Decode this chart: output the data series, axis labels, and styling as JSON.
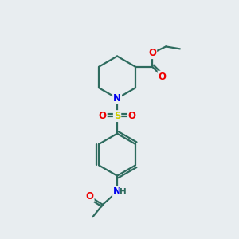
{
  "bg_color": "#e8edf0",
  "bond_color": "#2d6b5e",
  "bond_width": 1.6,
  "atom_colors": {
    "N": "#0000ee",
    "O": "#ee0000",
    "S": "#cccc00",
    "H": "#2d6b5e"
  },
  "font_size": 8.5,
  "fig_width": 3.0,
  "fig_height": 3.0,
  "xlim": [
    0,
    10
  ],
  "ylim": [
    0,
    10
  ]
}
